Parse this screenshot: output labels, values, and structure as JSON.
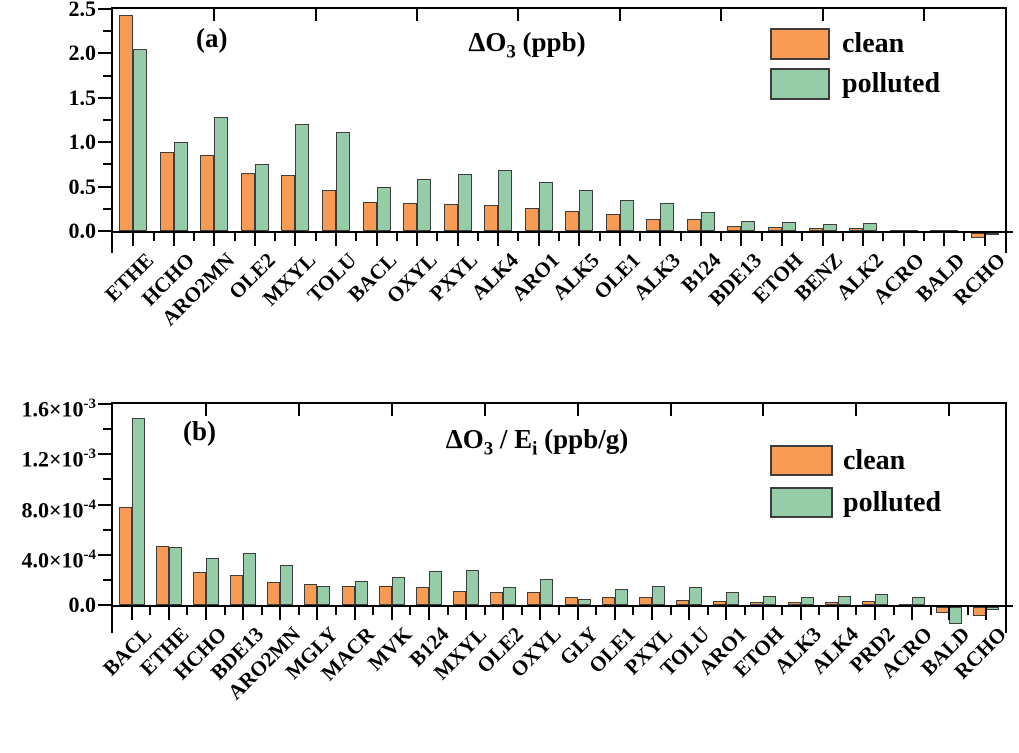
{
  "figure": {
    "background": "#ffffff",
    "colors": {
      "clean": "#F89B54",
      "polluted": "#96CCA8",
      "bar_edge": "#3d3d3d",
      "axis": "#000000",
      "text": "#000000"
    }
  },
  "chart_data": [
    {
      "type": "bar",
      "panel": "a",
      "panel_label": "(a)",
      "title_text": "ΔO3 (ppb)",
      "title_parts": [
        {
          "t": "ΔO"
        },
        {
          "sub": "3"
        },
        {
          "t": " (ppb)"
        }
      ],
      "legend": [
        {
          "name": "clean",
          "color": "#F89B54"
        },
        {
          "name": "polluted",
          "color": "#96CCA8"
        }
      ],
      "legend_position": "top-right",
      "grid": false,
      "ylim": [
        -0.25,
        2.5
      ],
      "ylabel": "",
      "xlabel": "",
      "yticks": [
        {
          "v": 0.0,
          "parts": [
            {
              "t": "0.0"
            }
          ]
        },
        {
          "v": 0.5,
          "parts": [
            {
              "t": "0.5"
            }
          ]
        },
        {
          "v": 1.0,
          "parts": [
            {
              "t": "1.0"
            }
          ]
        },
        {
          "v": 1.5,
          "parts": [
            {
              "t": "1.5"
            }
          ]
        },
        {
          "v": 2.0,
          "parts": [
            {
              "t": "2.0"
            }
          ]
        },
        {
          "v": 2.5,
          "parts": [
            {
              "t": "2.5"
            }
          ]
        }
      ],
      "yminor": [
        0.25,
        0.75,
        1.25,
        1.75,
        2.25
      ],
      "categories": [
        "ETHE",
        "HCHO",
        "ARO2MN",
        "OLE2",
        "MXYL",
        "TOLU",
        "BACL",
        "OXYL",
        "PXYL",
        "ALK4",
        "ARO1",
        "ALK5",
        "OLE1",
        "ALK3",
        "B124",
        "BDE13",
        "ETOH",
        "BENZ",
        "ALK2",
        "ACRO",
        "BALD",
        "RCHO"
      ],
      "series": [
        {
          "name": "clean",
          "values": [
            2.43,
            0.89,
            0.86,
            0.65,
            0.63,
            0.46,
            0.33,
            0.32,
            0.3,
            0.29,
            0.26,
            0.22,
            0.19,
            0.14,
            0.13,
            0.06,
            0.05,
            0.03,
            0.035,
            0.012,
            0.01,
            -0.06
          ]
        },
        {
          "name": "polluted",
          "values": [
            2.05,
            1.0,
            1.28,
            0.76,
            1.21,
            1.12,
            0.49,
            0.59,
            0.64,
            0.69,
            0.55,
            0.46,
            0.35,
            0.32,
            0.21,
            0.11,
            0.1,
            0.08,
            0.09,
            0.012,
            0.01,
            -0.005
          ]
        }
      ]
    },
    {
      "type": "bar",
      "panel": "b",
      "panel_label": "(b)",
      "title_text": "ΔO3 / Ei (ppb/g)",
      "title_parts": [
        {
          "t": "ΔO"
        },
        {
          "sub": "3"
        },
        {
          "t": " / E"
        },
        {
          "sub": "i"
        },
        {
          "t": " (ppb/g)"
        }
      ],
      "legend": [
        {
          "name": "clean",
          "color": "#F89B54"
        },
        {
          "name": "polluted",
          "color": "#96CCA8"
        }
      ],
      "legend_position": "top-right",
      "grid": false,
      "ylim": [
        -0.00022,
        0.0016
      ],
      "ylabel": "",
      "xlabel": "",
      "yticks": [
        {
          "v": 0.0,
          "parts": [
            {
              "t": "0.0"
            }
          ]
        },
        {
          "v": 0.0004,
          "parts": [
            {
              "t": "4.0×10"
            },
            {
              "sup": "-4"
            }
          ]
        },
        {
          "v": 0.0008,
          "parts": [
            {
              "t": "8.0×10"
            },
            {
              "sup": "-4"
            }
          ]
        },
        {
          "v": 0.0012,
          "parts": [
            {
              "t": "1.2×10"
            },
            {
              "sup": "-3"
            }
          ]
        },
        {
          "v": 0.0016,
          "parts": [
            {
              "t": "1.6×10"
            },
            {
              "sup": "-3"
            }
          ]
        }
      ],
      "yminor": [
        0.0002,
        0.0006,
        0.001,
        0.0014
      ],
      "categories": [
        "BACL",
        "ETHE",
        "HCHO",
        "BDE13",
        "ARO2MN",
        "MGLY",
        "MACR",
        "MVK",
        "B124",
        "MXYL",
        "OLE2",
        "OXYL",
        "GLY",
        "OLE1",
        "PXYL",
        "TOLU",
        "ARO1",
        "ETOH",
        "ALK3",
        "ALK4",
        "PRD2",
        "ACRO",
        "BALD",
        "RCHO"
      ],
      "series": [
        {
          "name": "clean",
          "values": [
            0.00078,
            0.00047,
            0.00026,
            0.00024,
            0.000185,
            0.000165,
            0.000155,
            0.000155,
            0.000145,
            0.00011,
            0.000105,
            0.0001,
            6.5e-05,
            6e-05,
            6e-05,
            4e-05,
            3.5e-05,
            2.5e-05,
            2e-05,
            2.5e-05,
            3e-05,
            5e-06,
            -4.5e-05,
            -7e-05
          ]
        },
        {
          "name": "polluted",
          "values": [
            0.00149,
            0.00046,
            0.000375,
            0.000415,
            0.000315,
            0.00015,
            0.000195,
            0.00022,
            0.00027,
            0.00028,
            0.000145,
            0.00021,
            4.5e-05,
            0.00013,
            0.00015,
            0.000145,
            0.000105,
            7e-05,
            6e-05,
            7.5e-05,
            9e-05,
            6.5e-05,
            -0.000135,
            -2e-05
          ]
        }
      ]
    }
  ]
}
